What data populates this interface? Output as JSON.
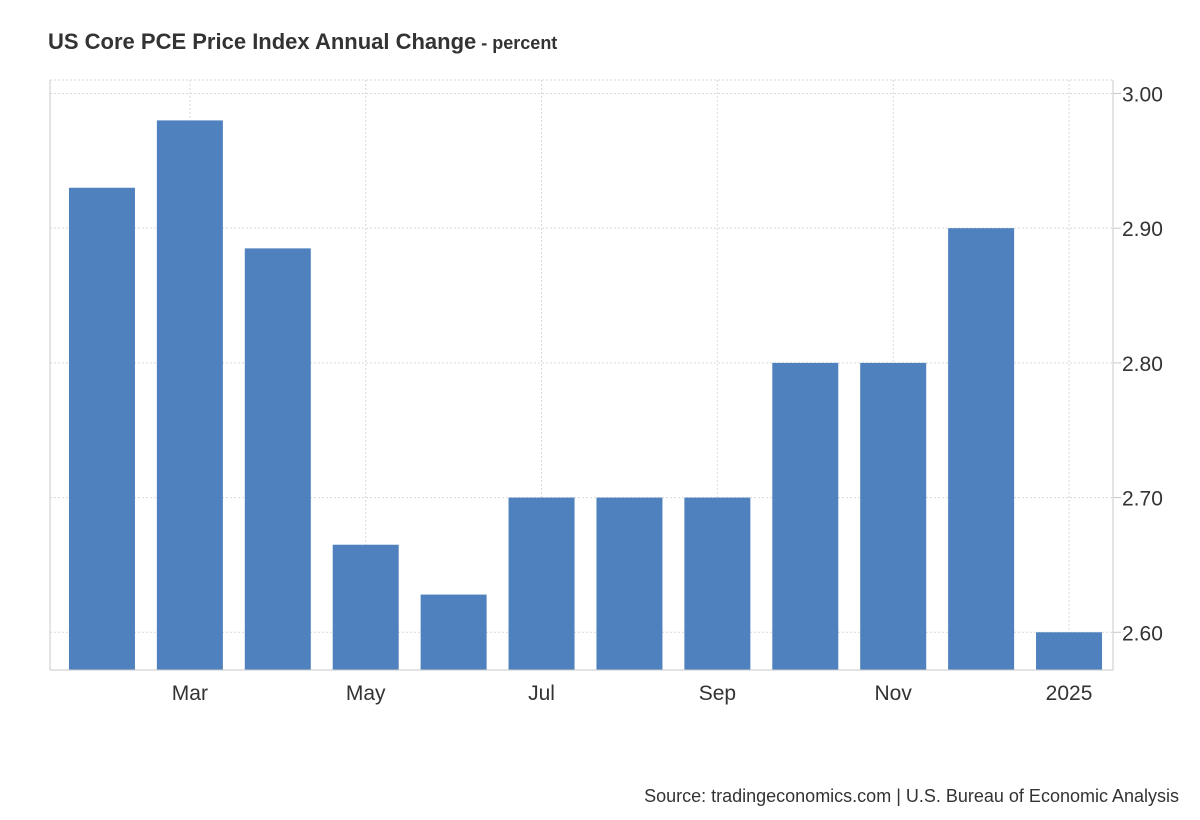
{
  "chart_data": {
    "type": "bar",
    "title": "US Core PCE Price Index Annual Change",
    "title_separator": " - ",
    "unit": "percent",
    "categories": [
      "Feb 2024",
      "Mar 2024",
      "Apr 2024",
      "May 2024",
      "Jun 2024",
      "Jul 2024",
      "Aug 2024",
      "Sep 2024",
      "Oct 2024",
      "Nov 2024",
      "Dec 2024",
      "Jan 2025"
    ],
    "values": [
      2.93,
      2.98,
      2.885,
      2.665,
      2.628,
      2.7,
      2.7,
      2.7,
      2.8,
      2.8,
      2.9,
      2.6
    ],
    "x_tick_labels": [
      {
        "label": "Mar",
        "category_index": 1
      },
      {
        "label": "May",
        "category_index": 3
      },
      {
        "label": "Jul",
        "category_index": 5
      },
      {
        "label": "Sep",
        "category_index": 7
      },
      {
        "label": "Nov",
        "category_index": 9
      },
      {
        "label": "2025",
        "category_index": 11
      }
    ],
    "y_ticks": [
      "3.00",
      "2.90",
      "2.80",
      "2.70",
      "2.60"
    ],
    "ylim": [
      2.572,
      3.01
    ],
    "y_axis_side": "right",
    "grid": true,
    "legend": "none",
    "bar_color": "#4e81bd",
    "gridline_color": "#d9d9d9",
    "axis_color": "#c8c8c8",
    "text_color": "#333333",
    "source": "Source: tradingeconomics.com | U.S. Bureau of Economic Analysis"
  }
}
